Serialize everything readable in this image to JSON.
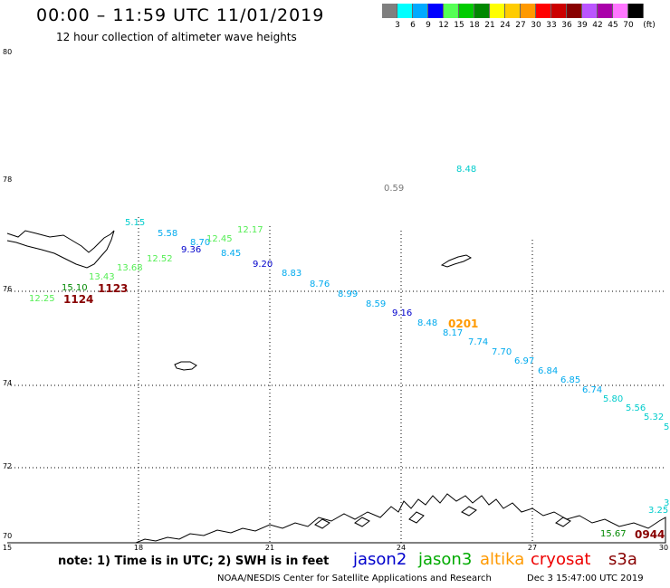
{
  "header": {
    "title": "00:00 – 11:59 UTC 11/01/2019",
    "subtitle": "12 hour collection of altimeter wave heights"
  },
  "color_scale": {
    "unit": "(ft)",
    "colors": [
      "#7f7f7f",
      "#00ffff",
      "#00aaff",
      "#0000ff",
      "#55ff55",
      "#00cc00",
      "#008800",
      "#ffff00",
      "#ffcc00",
      "#ff9900",
      "#ff0000",
      "#cc0000",
      "#880000",
      "#bb55ff",
      "#aa00aa",
      "#ff77ff",
      "#000000"
    ],
    "ticks": [
      "3",
      "6",
      "9",
      "12",
      "15",
      "18",
      "21",
      "24",
      "27",
      "30",
      "33",
      "36",
      "39",
      "42",
      "45",
      "70"
    ]
  },
  "map": {
    "lat_labels": [
      "80",
      "78",
      "76",
      "74",
      "72",
      "70"
    ],
    "lon_labels": [
      "15",
      "18",
      "21",
      "24",
      "27",
      "30"
    ]
  },
  "wave_heights": [
    {
      "v": "8.48",
      "c": "#00cccc"
    },
    {
      "v": "0.59",
      "c": "#777777"
    },
    {
      "v": "5.15",
      "c": "#00cccc"
    },
    {
      "v": "5.58",
      "c": "#00aaee"
    },
    {
      "v": "8.70",
      "c": "#00aaee"
    },
    {
      "v": "12.45",
      "c": "#55ee55"
    },
    {
      "v": "12.17",
      "c": "#55ee55"
    },
    {
      "v": "9.36",
      "c": "#0000cc"
    },
    {
      "v": "8.45",
      "c": "#00aaee"
    },
    {
      "v": "12.52",
      "c": "#55ee55"
    },
    {
      "v": "9.20",
      "c": "#0000cc"
    },
    {
      "v": "13.68",
      "c": "#55ee55"
    },
    {
      "v": "8.83",
      "c": "#00aaee"
    },
    {
      "v": "13.43",
      "c": "#55ee55"
    },
    {
      "v": "8.76",
      "c": "#00aaee"
    },
    {
      "v": "15.10",
      "c": "#008800"
    },
    {
      "v": "8.99",
      "c": "#00aaee"
    },
    {
      "v": "12.25",
      "c": "#55ee55"
    },
    {
      "v": "8.59",
      "c": "#00aaee"
    },
    {
      "v": "9.16",
      "c": "#0000cc"
    },
    {
      "v": "8.48",
      "c": "#00aaee"
    },
    {
      "v": "8.17",
      "c": "#00aaee"
    },
    {
      "v": "7.74",
      "c": "#00aaee"
    },
    {
      "v": "7.70",
      "c": "#00aaee"
    },
    {
      "v": "6.97",
      "c": "#00aaee"
    },
    {
      "v": "6.84",
      "c": "#00aaee"
    },
    {
      "v": "6.85",
      "c": "#00aaee"
    },
    {
      "v": "6.74",
      "c": "#00aaee"
    },
    {
      "v": "5.80",
      "c": "#00cccc"
    },
    {
      "v": "5.56",
      "c": "#00cccc"
    },
    {
      "v": "5.32",
      "c": "#00cccc"
    },
    {
      "v": "5",
      "c": "#00cccc"
    },
    {
      "v": "3",
      "c": "#00cccc"
    },
    {
      "v": "3.25",
      "c": "#00cccc"
    },
    {
      "v": "15.67",
      "c": "#008800"
    }
  ],
  "pass_times": [
    {
      "t": "1123",
      "c": "#880000"
    },
    {
      "t": "1124",
      "c": "#880000"
    },
    {
      "t": "0201",
      "c": "#ff9900"
    },
    {
      "t": "0944",
      "c": "#880000"
    }
  ],
  "footer": {
    "note": "note: 1) Time is in UTC; 2) SWH is in feet",
    "legend": [
      {
        "name": "jason2",
        "color": "#0000cc"
      },
      {
        "name": "jason3",
        "color": "#00aa00"
      },
      {
        "name": "altika",
        "color": "#ff9900"
      },
      {
        "name": "cryosat",
        "color": "#ee0000"
      },
      {
        "name": "s3a",
        "color": "#880000"
      }
    ],
    "credit": "NOAA/NESDIS Center for Satellite Applications and Research",
    "date": "Dec  3 15:47:00 UTC 2019"
  }
}
